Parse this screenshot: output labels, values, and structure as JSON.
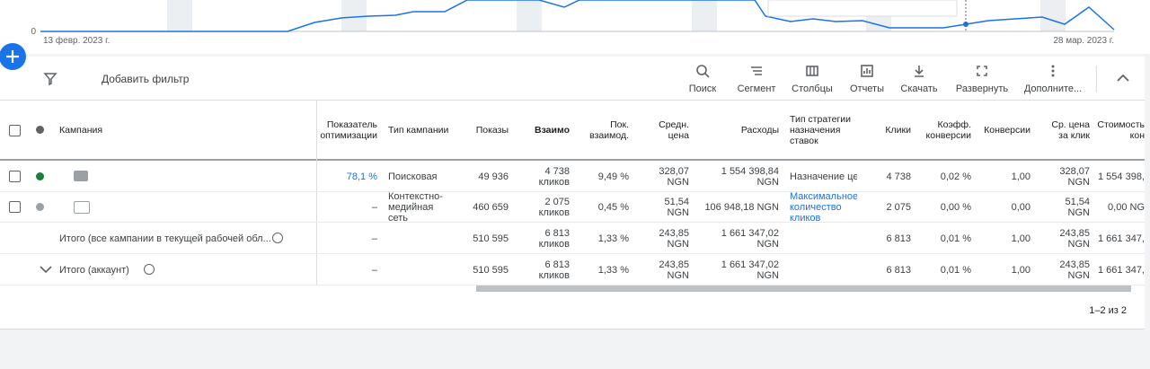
{
  "chart": {
    "y_label": "0",
    "start_date": "13 февр. 2023 г.",
    "end_date": "28 мар. 2023 г."
  },
  "toolbar": {
    "add_filter": "Добавить фильтр",
    "buttons": [
      "Поиск",
      "Сегмент",
      "Столбцы",
      "Отчеты",
      "Скачать",
      "Развернуть",
      "Дополните..."
    ]
  },
  "table": {
    "columns": [
      "Кампания",
      "Показатель оптимизации",
      "Тип кампании",
      "Показы",
      "Взаимо",
      "Пок. взаимод.",
      "Средн. цена",
      "Расходы",
      "Тип стратегии назначения ставок",
      "Клики",
      "Коэфф. конверсии",
      "Конверсии",
      "Ср. цена за клик",
      "Стоимость кон"
    ],
    "rows": [
      [
        null,
        "78,1 %",
        "Поисковая",
        "49 936",
        "4 738 кликов",
        "9,49 %",
        "328,07 NGN",
        "1 554 398,84 NGN",
        "Назначение цен",
        "4 738",
        "0,02 %",
        "1,00",
        "328,07 NGN",
        "1 554 398,"
      ],
      [
        null,
        "–",
        "Контекстно-медийная сеть",
        "460 659",
        "2 075 кликов",
        "0,45 %",
        "51,54 NGN",
        "106 948,18 NGN",
        "Максимальное количество кликов",
        "2 075",
        "0,00 %",
        "0,00",
        "51,54 NGN",
        "0,00 NG"
      ],
      [
        "Итого (все кампании в текущей рабочей обл...",
        "–",
        null,
        "510 595",
        "6 813 кликов",
        "1,33 %",
        "243,85 NGN",
        "1 661 347,02 NGN",
        null,
        "6 813",
        "0,01 %",
        "1,00",
        "243,85 NGN",
        "1 661 347,"
      ],
      [
        "Итого (аккаунт)",
        "–",
        null,
        "510 595",
        "6 813 кликов",
        "1,33 %",
        "243,85 NGN",
        "1 661 347,02 NGN",
        null,
        "6 813",
        "0,01 %",
        "1,00",
        "243,85 NGN",
        "1 661 347,"
      ]
    ]
  },
  "pagination": "1–2 из 2"
}
